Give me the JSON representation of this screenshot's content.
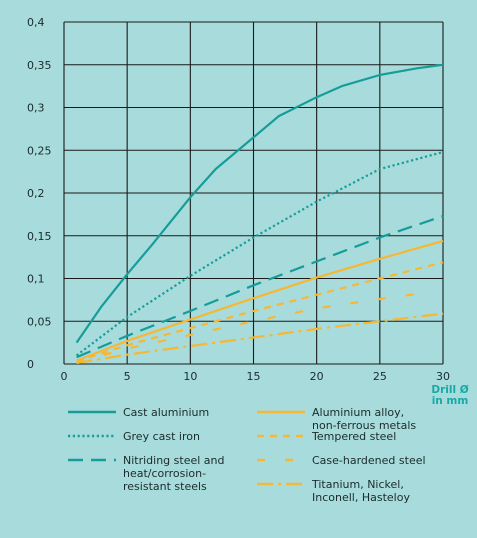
{
  "colors": {
    "background": "#a8dcdc",
    "teal": "#169d9a",
    "gold": "#f7b733",
    "grid": "#1a1a1a"
  },
  "chart_data": {
    "type": "line",
    "xlabel": [
      "Drill Ø",
      "in mm"
    ],
    "ylabel": "",
    "xlim": [
      0,
      30
    ],
    "ylim": [
      0,
      0.4
    ],
    "xticks": [
      "0",
      "5",
      "10",
      "15",
      "20",
      "25",
      "30"
    ],
    "yticks": [
      "0",
      "0,05",
      "0,1",
      "0,15",
      "0,2",
      "0,25",
      "0,3",
      "0,35",
      "0,4"
    ],
    "grid": true,
    "legend_position": "bottom",
    "series": [
      {
        "name": [
          "Cast aluminium"
        ],
        "color": "teal",
        "style": "solid",
        "x": [
          1,
          3,
          5,
          7,
          10,
          12,
          15,
          17,
          20,
          22,
          25,
          28,
          30
        ],
        "y": [
          0.025,
          0.068,
          0.105,
          0.14,
          0.195,
          0.228,
          0.265,
          0.29,
          0.312,
          0.325,
          0.338,
          0.346,
          0.35
        ]
      },
      {
        "name": [
          "Grey cast iron"
        ],
        "color": "teal",
        "style": "dotted",
        "x": [
          1,
          5,
          10,
          15,
          20,
          25,
          30
        ],
        "y": [
          0.01,
          0.055,
          0.103,
          0.148,
          0.19,
          0.228,
          0.248
        ]
      },
      {
        "name": [
          "Nitriding steel and",
          "heat/corrosion-",
          "resistant steels"
        ],
        "color": "teal",
        "style": "dashed",
        "x": [
          1,
          5,
          10,
          15,
          20,
          25,
          30
        ],
        "y": [
          0.008,
          0.033,
          0.062,
          0.092,
          0.12,
          0.148,
          0.173
        ]
      },
      {
        "name": [
          "Aluminium alloy,",
          "non-ferrous metals"
        ],
        "color": "gold",
        "style": "solid",
        "x": [
          1,
          5,
          10,
          15,
          20,
          25,
          30
        ],
        "y": [
          0.004,
          0.027,
          0.052,
          0.077,
          0.101,
          0.123,
          0.144
        ]
      },
      {
        "name": [
          "Tempered steel"
        ],
        "color": "gold",
        "style": "short-dash",
        "x": [
          1,
          5,
          10,
          15,
          20,
          25,
          30
        ],
        "y": [
          0.003,
          0.022,
          0.042,
          0.062,
          0.081,
          0.1,
          0.119
        ]
      },
      {
        "name": [
          "Case-hardened steel"
        ],
        "color": "gold",
        "style": "sparse-dash",
        "x": [
          1,
          5,
          10,
          15,
          20,
          25,
          28
        ],
        "y": [
          0.002,
          0.018,
          0.034,
          0.05,
          0.065,
          0.076,
          0.082
        ]
      },
      {
        "name": [
          "Titanium, Nickel,",
          "Inconell, Hasteloy"
        ],
        "color": "gold",
        "style": "dash-dot",
        "x": [
          1,
          5,
          10,
          15,
          20,
          25,
          30
        ],
        "y": [
          0.001,
          0.011,
          0.021,
          0.031,
          0.041,
          0.05,
          0.059
        ]
      }
    ]
  }
}
